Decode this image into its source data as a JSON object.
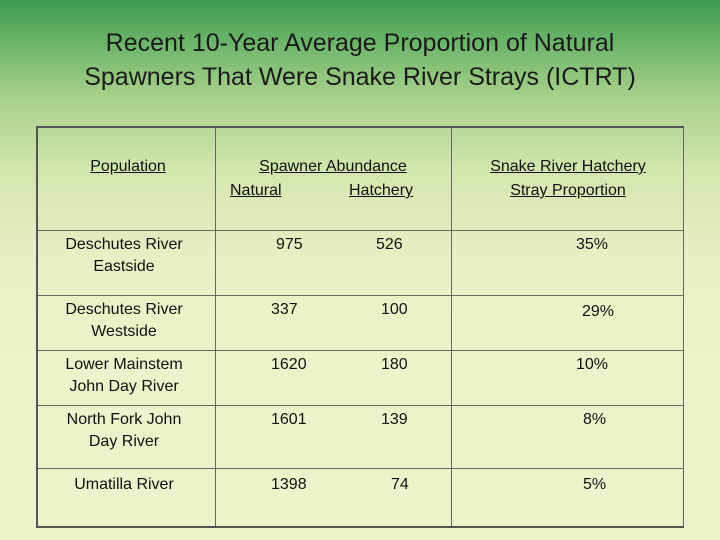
{
  "title": {
    "line1": "Recent 10-Year Average Proportion of Natural",
    "line2": "Spawners That Were Snake River Strays (ICTRT)"
  },
  "table": {
    "headers": {
      "population": "Population",
      "abundance_line1": "Spawner Abundance",
      "abundance_natural": "Natural",
      "abundance_hatchery": "Hatchery",
      "stray_line1": "Snake River Hatchery",
      "stray_line2": "Stray Proportion"
    },
    "rows": [
      {
        "population_line1": "Deschutes River",
        "population_line2": "Eastside",
        "natural": "975",
        "hatchery": "526",
        "stray": "35%"
      },
      {
        "population_line1": "Deschutes River",
        "population_line2": "Westside",
        "natural": "337",
        "hatchery": "100",
        "stray": "29%"
      },
      {
        "population_line1": "Lower Mainstem",
        "population_line2": "John Day River",
        "natural": "1620",
        "hatchery": "180",
        "stray": "10%"
      },
      {
        "population_line1": "North Fork John",
        "population_line2": "Day River",
        "natural": "1601",
        "hatchery": "139",
        "stray": "8%"
      },
      {
        "population_line1": "Umatilla River",
        "population_line2": "",
        "natural": "1398",
        "hatchery": "74",
        "stray": "5%"
      }
    ]
  }
}
